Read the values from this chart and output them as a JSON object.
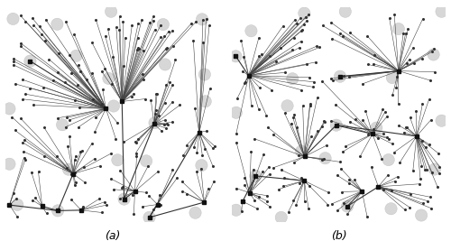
{
  "n_facilities": 25,
  "n_substations": 50,
  "n_demands": 200,
  "label_a": "(a)",
  "label_b": "(b)",
  "facility_color": "#d0d0d0",
  "facility_edge_color": "#bbbbbb",
  "facility_marker_size": 7,
  "substation_color": "#111111",
  "substation_marker_size": 3,
  "demand_color": "#333333",
  "demand_marker_size": 1.2,
  "edge_color_dem_sub": "#444444",
  "edge_lw_dem_sub": 0.4,
  "edge_color_sub_fac": "#333333",
  "edge_lw_sub_fac": 0.8,
  "background_color": "#ffffff",
  "fig_width": 5.0,
  "fig_height": 2.67,
  "dpi": 100,
  "panel_a": {
    "fac_seed": 3,
    "sub_seed": 7,
    "dem_seed": 11,
    "n_active_sub": 11,
    "n_active_fac": 4
  },
  "panel_b": {
    "fac_seed": 17,
    "sub_seed": 23,
    "dem_seed": 31,
    "n_active_sub": 10,
    "n_active_fac": 5
  }
}
